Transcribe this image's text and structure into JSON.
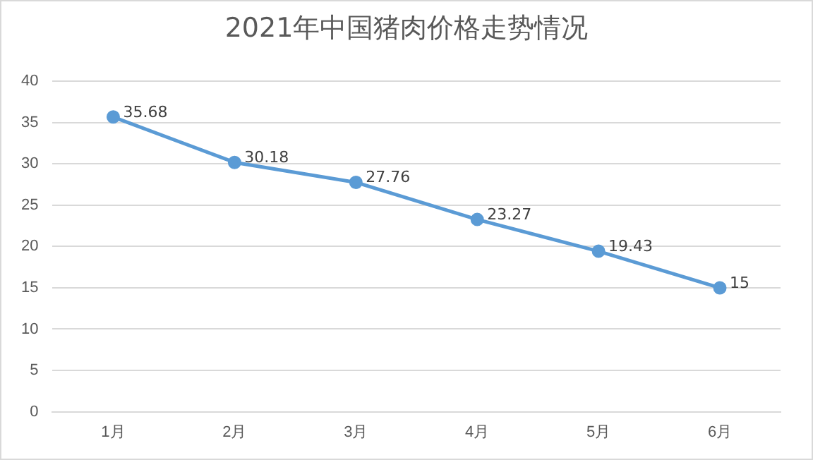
{
  "chart_data": {
    "type": "line",
    "title": "2021年中国猪肉价格走势情况",
    "categories": [
      "1月",
      "2月",
      "3月",
      "4月",
      "5月",
      "6月"
    ],
    "series": [
      {
        "color": "#5b9bd5",
        "values": [
          35.68,
          30.18,
          27.76,
          23.27,
          19.43,
          15
        ]
      }
    ],
    "ylim": [
      0,
      40
    ],
    "yticks": [
      0,
      5,
      10,
      15,
      20,
      25,
      30,
      35,
      40
    ],
    "grid": "y",
    "legend": false,
    "marker": "circle",
    "line_style": "solid",
    "data_labels": true
  }
}
